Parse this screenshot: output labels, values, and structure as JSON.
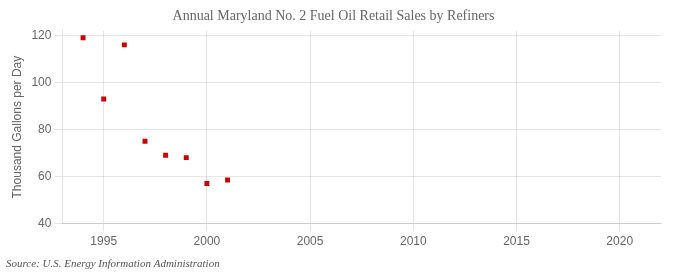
{
  "chart_data": {
    "type": "scatter",
    "title": "Annual Maryland No. 2 Fuel Oil Retail Sales by Refiners",
    "ylabel": "Thousand Gallons per Day",
    "annotation": "Source: U.S. Energy Information Administration",
    "x": [
      1994,
      1995,
      1996,
      1997,
      1998,
      1999,
      2000,
      2001
    ],
    "values": [
      119.0,
      93.0,
      116.0,
      75.0,
      69.0,
      68.0,
      57.0,
      58.5
    ],
    "color": "#cc0000",
    "marker": "square",
    "xlim": [
      1993,
      2022
    ],
    "xticks": [
      1995,
      2000,
      2005,
      2010,
      2015,
      2020
    ],
    "ylim": [
      40,
      122
    ],
    "yticks": [
      40,
      60,
      80,
      100,
      120
    ],
    "grid": true
  }
}
